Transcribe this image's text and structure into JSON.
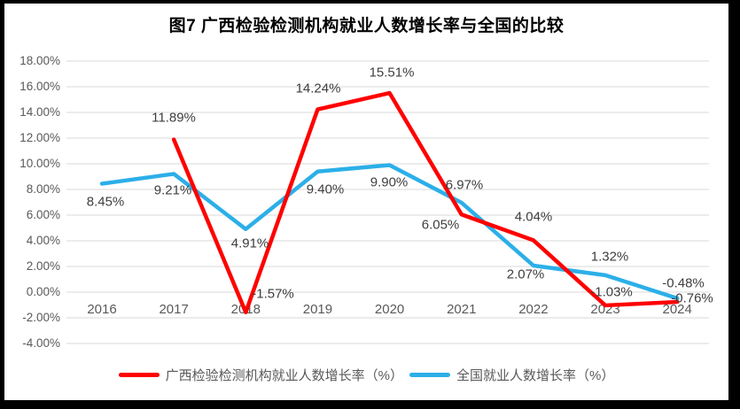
{
  "title": "图7 广西检验检测机构就业人数增长率与全国的比较",
  "colors": {
    "frame_bg": "#000000",
    "chart_bg": "#ffffff",
    "grid": "#d9d9d9",
    "tick_text": "#595959",
    "data_label_text": "#3e3e3e",
    "guangxi_line": "#ff0000",
    "national_line": "#2cafe8"
  },
  "chart_data": {
    "type": "line",
    "categories": [
      "2016",
      "2017",
      "2018",
      "2019",
      "2020",
      "2021",
      "2022",
      "2023",
      "2024"
    ],
    "series": [
      {
        "name": "广西检验检测机构就业人数增长率（%）",
        "color": "#ff0000",
        "values": [
          null,
          11.89,
          -1.57,
          14.24,
          15.51,
          6.05,
          4.04,
          -1.03,
          -0.76
        ]
      },
      {
        "name": "全国就业人数增长率（%）",
        "color": "#2cafe8",
        "values": [
          8.45,
          9.21,
          4.91,
          9.4,
          9.9,
          6.97,
          2.07,
          1.32,
          -0.48
        ]
      }
    ],
    "ylim": [
      -4,
      18
    ],
    "ytick_step": 2,
    "ytick_labels": [
      "18.00%",
      "16.00%",
      "14.00%",
      "12.00%",
      "10.00%",
      "8.00%",
      "6.00%",
      "4.00%",
      "2.00%",
      "0.00%",
      "-2.00%",
      "-4.00%"
    ],
    "grid": true,
    "legend_position": "bottom"
  }
}
